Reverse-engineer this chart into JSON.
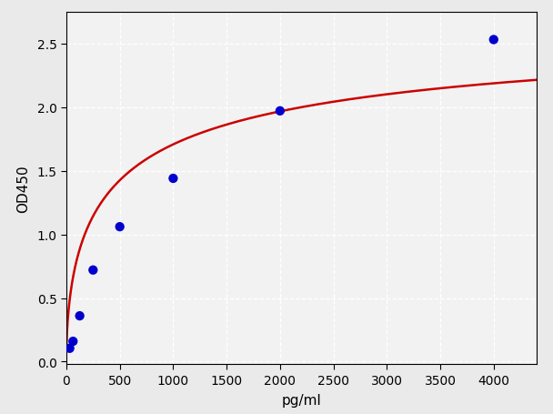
{
  "x_data": [
    31.25,
    62.5,
    125,
    250,
    500,
    1000,
    2000,
    4000
  ],
  "y_data": [
    0.105,
    0.16,
    0.36,
    0.72,
    1.06,
    1.44,
    1.97,
    2.53
  ],
  "xlabel": "pg/ml",
  "ylabel": "OD450",
  "xlim": [
    0,
    4400
  ],
  "ylim": [
    -0.02,
    2.75
  ],
  "xticks": [
    0,
    500,
    1000,
    1500,
    2000,
    2500,
    3000,
    3500,
    4000
  ],
  "yticks": [
    0.0,
    0.5,
    1.0,
    1.5,
    2.0,
    2.5
  ],
  "bg_color": "#eaeaea",
  "plot_bg_color": "#f2f2f2",
  "dot_color": "#0000cc",
  "line_color": "#cc0000",
  "grid_color": "#ffffff",
  "dot_size": 55,
  "line_width": 1.8,
  "xlabel_fontsize": 11,
  "ylabel_fontsize": 11,
  "tick_fontsize": 10
}
